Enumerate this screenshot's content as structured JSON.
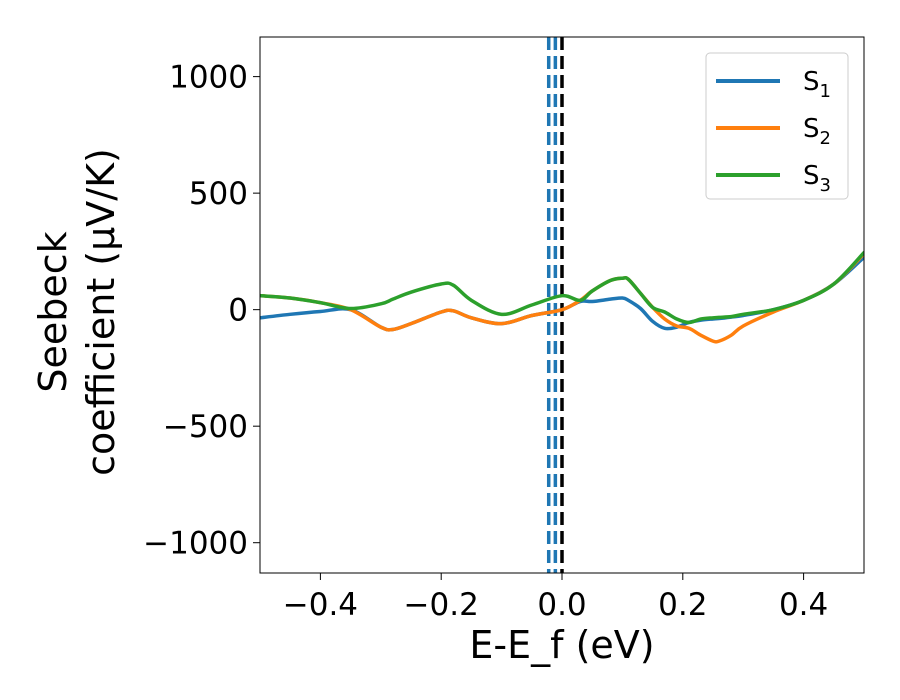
{
  "chart_data": {
    "type": "line",
    "xlabel": "E-E_f (eV)",
    "ylabel_line1": "Seebeck",
    "ylabel_line2": "coefficient  (μV/K)",
    "xlim": [
      -0.5,
      0.5
    ],
    "ylim": [
      -1130,
      1170
    ],
    "x_ticks": [
      -0.4,
      -0.2,
      0.0,
      0.2,
      0.4
    ],
    "x_tick_labels": [
      "−0.4",
      "−0.2",
      "0.0",
      "0.2",
      "0.4"
    ],
    "y_ticks": [
      -1000,
      -500,
      0,
      500,
      1000
    ],
    "y_tick_labels": [
      "−1000",
      "−500",
      "0",
      "500",
      "1000"
    ],
    "grid": false,
    "legend_position": "top-right",
    "vlines": [
      {
        "x": -0.022,
        "style": "dashed",
        "color": "#1f77b4"
      },
      {
        "x": -0.011,
        "style": "dashed",
        "color": "#1f77b4"
      },
      {
        "x": 0.0,
        "style": "dashed",
        "color": "#000000"
      }
    ],
    "x": [
      -0.5,
      -0.45,
      -0.4,
      -0.35,
      -0.3,
      -0.28,
      -0.25,
      -0.2,
      -0.18,
      -0.15,
      -0.1,
      -0.05,
      0.0,
      0.03,
      0.05,
      0.08,
      0.1,
      0.11,
      0.13,
      0.15,
      0.17,
      0.19,
      0.21,
      0.23,
      0.25,
      0.26,
      0.28,
      0.3,
      0.35,
      0.4,
      0.45,
      0.5
    ],
    "series": [
      {
        "name": "S",
        "subscript": "1",
        "color": "#1f77b4",
        "values": [
          -35,
          -20,
          -8,
          0,
          -75,
          -85,
          -60,
          -10,
          -5,
          -35,
          -60,
          -25,
          0,
          35,
          35,
          45,
          50,
          40,
          5,
          -50,
          -80,
          -75,
          -55,
          -45,
          -40,
          -38,
          -32,
          -25,
          0,
          40,
          110,
          225
        ]
      },
      {
        "name": "S",
        "subscript": "2",
        "color": "#ff7f0e",
        "values": [
          60,
          50,
          30,
          0,
          -75,
          -85,
          -60,
          -10,
          -5,
          -35,
          -60,
          -25,
          0,
          40,
          80,
          125,
          135,
          130,
          70,
          10,
          -40,
          -70,
          -80,
          -110,
          -135,
          -135,
          -110,
          -70,
          -10,
          40,
          110,
          240
        ]
      },
      {
        "name": "S",
        "subscript": "3",
        "color": "#2ca02c",
        "values": [
          60,
          50,
          30,
          5,
          25,
          45,
          75,
          110,
          105,
          40,
          -20,
          20,
          60,
          40,
          80,
          125,
          135,
          130,
          70,
          10,
          -10,
          -40,
          -55,
          -40,
          -35,
          -33,
          -30,
          -20,
          0,
          40,
          110,
          245
        ]
      }
    ]
  }
}
